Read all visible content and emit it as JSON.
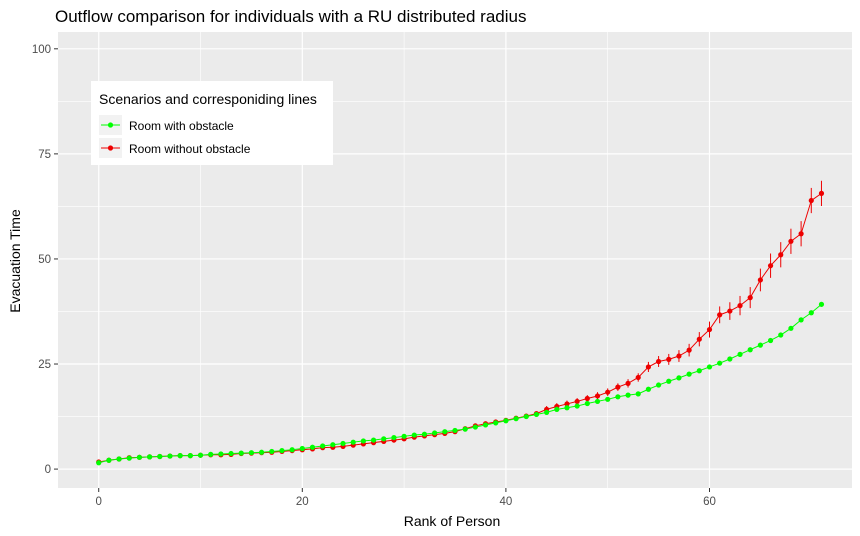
{
  "chart_data": {
    "type": "line",
    "title": "Outflow comparison for individuals with a RU distributed radius",
    "xlabel": "Rank of Person",
    "ylabel": "Evacuation Time",
    "xlim": [
      -4,
      74
    ],
    "ylim": [
      -4.5,
      104
    ],
    "x_ticks": [
      0,
      20,
      40,
      60
    ],
    "y_ticks": [
      0,
      25,
      50,
      75,
      100
    ],
    "grid": true,
    "legend": {
      "title": "Scenarios and corresponiding lines",
      "position": "top-left",
      "entries": [
        "Room with obstacle",
        "Room without obstacle"
      ]
    },
    "series": [
      {
        "name": "Room with obstacle",
        "color": "#00ff00",
        "x": [
          0,
          1,
          2,
          3,
          4,
          5,
          6,
          7,
          8,
          9,
          10,
          11,
          12,
          13,
          14,
          15,
          16,
          17,
          18,
          19,
          20,
          21,
          22,
          23,
          24,
          25,
          26,
          27,
          28,
          29,
          30,
          31,
          32,
          33,
          34,
          35,
          36,
          37,
          38,
          39,
          40,
          41,
          42,
          43,
          44,
          45,
          46,
          47,
          48,
          49,
          50,
          51,
          52,
          53,
          54,
          55,
          56,
          57,
          58,
          59,
          60,
          61,
          62,
          63,
          64,
          65,
          66,
          67,
          68,
          69,
          70,
          71
        ],
        "y": [
          1.5,
          2.1,
          2.4,
          2.6,
          2.8,
          2.9,
          3.0,
          3.1,
          3.2,
          3.2,
          3.3,
          3.5,
          3.6,
          3.7,
          3.8,
          3.9,
          4.0,
          4.2,
          4.4,
          4.6,
          4.9,
          5.2,
          5.5,
          5.8,
          6.1,
          6.4,
          6.7,
          6.9,
          7.2,
          7.5,
          7.8,
          8.1,
          8.3,
          8.6,
          8.9,
          9.2,
          9.5,
          10.0,
          10.5,
          11.0,
          11.5,
          12.0,
          12.5,
          13.0,
          13.5,
          14.2,
          14.6,
          15.0,
          15.6,
          16.1,
          16.6,
          17.2,
          17.6,
          17.9,
          19.0,
          20.0,
          20.9,
          21.7,
          22.6,
          23.4,
          24.3,
          25.2,
          26.2,
          27.3,
          28.4,
          29.5,
          30.6,
          31.9,
          33.5,
          35.5,
          37.2,
          39.2
        ]
      },
      {
        "name": "Room without obstacle",
        "color": "#ee0000",
        "x": [
          0,
          1,
          2,
          3,
          4,
          5,
          6,
          7,
          8,
          9,
          10,
          11,
          12,
          13,
          14,
          15,
          16,
          17,
          18,
          19,
          20,
          21,
          22,
          23,
          24,
          25,
          26,
          27,
          28,
          29,
          30,
          31,
          32,
          33,
          34,
          35,
          36,
          37,
          38,
          39,
          40,
          41,
          42,
          43,
          44,
          45,
          46,
          47,
          48,
          49,
          50,
          51,
          52,
          53,
          54,
          55,
          56,
          57,
          58,
          59,
          60,
          61,
          62,
          63,
          64,
          65,
          66,
          67,
          68,
          69,
          70,
          71
        ],
        "y": [
          1.7,
          2.1,
          2.4,
          2.7,
          2.8,
          2.9,
          3.0,
          3.1,
          3.2,
          3.2,
          3.3,
          3.4,
          3.4,
          3.5,
          3.7,
          3.8,
          3.9,
          4.0,
          4.2,
          4.4,
          4.6,
          4.8,
          5.1,
          5.2,
          5.4,
          5.7,
          6.0,
          6.3,
          6.6,
          6.9,
          7.2,
          7.6,
          7.9,
          8.2,
          8.5,
          8.9,
          9.6,
          10.3,
          10.8,
          11.2,
          11.6,
          12.1,
          12.6,
          13.2,
          14.2,
          14.9,
          15.5,
          16.1,
          16.8,
          17.4,
          18.3,
          19.5,
          20.4,
          21.8,
          24.3,
          25.6,
          26.1,
          26.9,
          28.3,
          30.9,
          33.2,
          36.7,
          37.6,
          38.9,
          40.8,
          45.0,
          48.4,
          51.0,
          54.2,
          56.0,
          63.9,
          65.6
        ],
        "error": [
          0,
          0,
          0,
          0,
          0,
          0,
          0,
          0,
          0,
          0,
          0,
          0,
          0,
          0,
          0,
          0,
          0,
          0,
          0,
          0,
          0,
          0,
          0,
          0,
          0,
          0,
          0,
          0,
          0,
          0,
          0,
          0,
          0,
          0,
          0,
          0,
          0,
          0,
          0,
          0,
          0,
          0,
          0,
          0,
          0.8,
          0.8,
          0.8,
          0.8,
          0.8,
          0.9,
          0.9,
          0.9,
          1.0,
          1.0,
          1.2,
          1.3,
          1.3,
          1.4,
          1.5,
          1.7,
          1.9,
          2.0,
          2.1,
          2.3,
          2.5,
          2.7,
          2.9,
          3.0,
          3.0,
          3.0,
          3.0,
          3.0
        ]
      }
    ]
  }
}
